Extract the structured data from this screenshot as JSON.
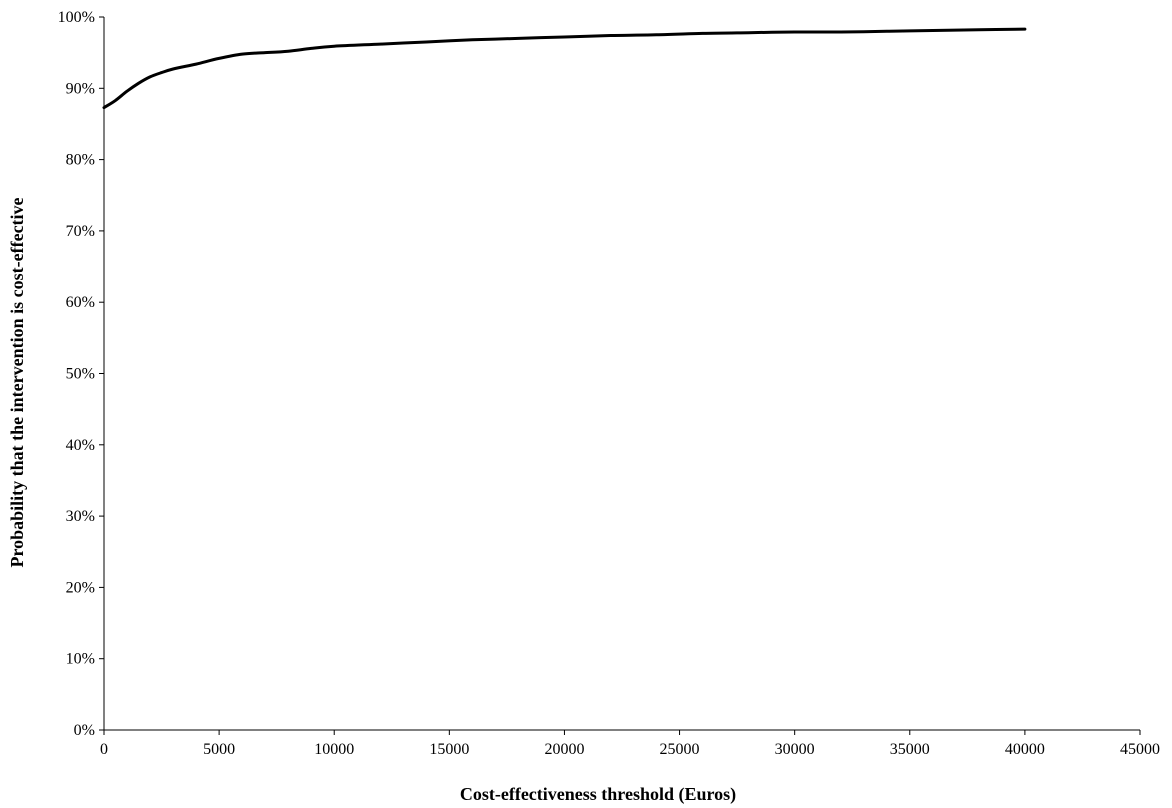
{
  "chart_data": {
    "type": "line",
    "title": "",
    "xlabel": "Cost-effectiveness threshold (Euros)",
    "ylabel": "Probability that the intervention is cost-effective",
    "xlim": [
      0,
      45000
    ],
    "ylim": [
      0,
      100
    ],
    "x_ticks": [
      "0",
      "5000",
      "10000",
      "15000",
      "20000",
      "25000",
      "30000",
      "35000",
      "40000",
      "45000"
    ],
    "y_ticks": [
      "0%",
      "10%",
      "20%",
      "30%",
      "40%",
      "50%",
      "60%",
      "70%",
      "80%",
      "90%",
      "100%"
    ],
    "grid": false,
    "legend": "none",
    "series": [
      {
        "line_color": "#000000",
        "x": [
          0,
          500,
          1000,
          1500,
          2000,
          2500,
          3000,
          4000,
          5000,
          6000,
          7000,
          8000,
          9000,
          10000,
          12000,
          14000,
          16000,
          18000,
          20000,
          22000,
          24000,
          26000,
          28000,
          30000,
          32000,
          34000,
          36000,
          38000,
          40000
        ],
        "y": [
          87.3,
          88.3,
          89.6,
          90.7,
          91.6,
          92.2,
          92.7,
          93.4,
          94.2,
          94.8,
          95.0,
          95.2,
          95.6,
          95.9,
          96.2,
          96.5,
          96.8,
          97.0,
          97.2,
          97.4,
          97.5,
          97.7,
          97.8,
          97.9,
          97.9,
          98.0,
          98.1,
          98.2,
          98.3
        ]
      }
    ]
  }
}
